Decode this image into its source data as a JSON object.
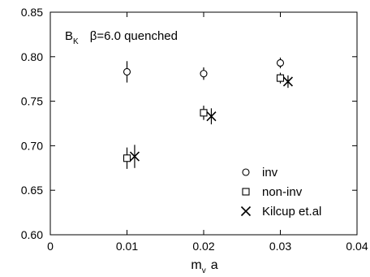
{
  "chart_data": {
    "type": "scatter",
    "title": "",
    "annotation": {
      "symbol_main": "B",
      "symbol_sub": "K",
      "text": "β=6.0 quenched"
    },
    "xlabel_main": "m",
    "xlabel_sub": "v",
    "xlabel_tail": "a",
    "ylabel": "",
    "xlim": [
      0,
      0.04
    ],
    "ylim": [
      0.6,
      0.85
    ],
    "x_ticks": [
      0,
      0.01,
      0.02,
      0.03,
      0.04
    ],
    "x_tick_labels": [
      "0",
      "0.01",
      "0.02",
      "0.03",
      "0.04"
    ],
    "y_ticks": [
      0.6,
      0.65,
      0.7,
      0.75,
      0.8,
      0.85
    ],
    "y_tick_labels": [
      "0.60",
      "0.65",
      "0.70",
      "0.75",
      "0.80",
      "0.85"
    ],
    "grid": false,
    "legend_position": "bottom-right",
    "series": [
      {
        "name": "inv",
        "marker": "circle",
        "points": [
          {
            "x": 0.01,
            "y": 0.783,
            "err": 0.012
          },
          {
            "x": 0.02,
            "y": 0.781,
            "err": 0.007
          },
          {
            "x": 0.03,
            "y": 0.793,
            "err": 0.006
          }
        ]
      },
      {
        "name": "non-inv",
        "marker": "square",
        "points": [
          {
            "x": 0.01,
            "y": 0.686,
            "err": 0.012
          },
          {
            "x": 0.02,
            "y": 0.737,
            "err": 0.008
          },
          {
            "x": 0.03,
            "y": 0.776,
            "err": 0.006
          }
        ]
      },
      {
        "name": "Kilcup et.al",
        "marker": "x",
        "points": [
          {
            "x": 0.011,
            "y": 0.688,
            "err": 0.013
          },
          {
            "x": 0.021,
            "y": 0.733,
            "err": 0.009
          },
          {
            "x": 0.031,
            "y": 0.772,
            "err": 0.007
          }
        ]
      }
    ]
  }
}
